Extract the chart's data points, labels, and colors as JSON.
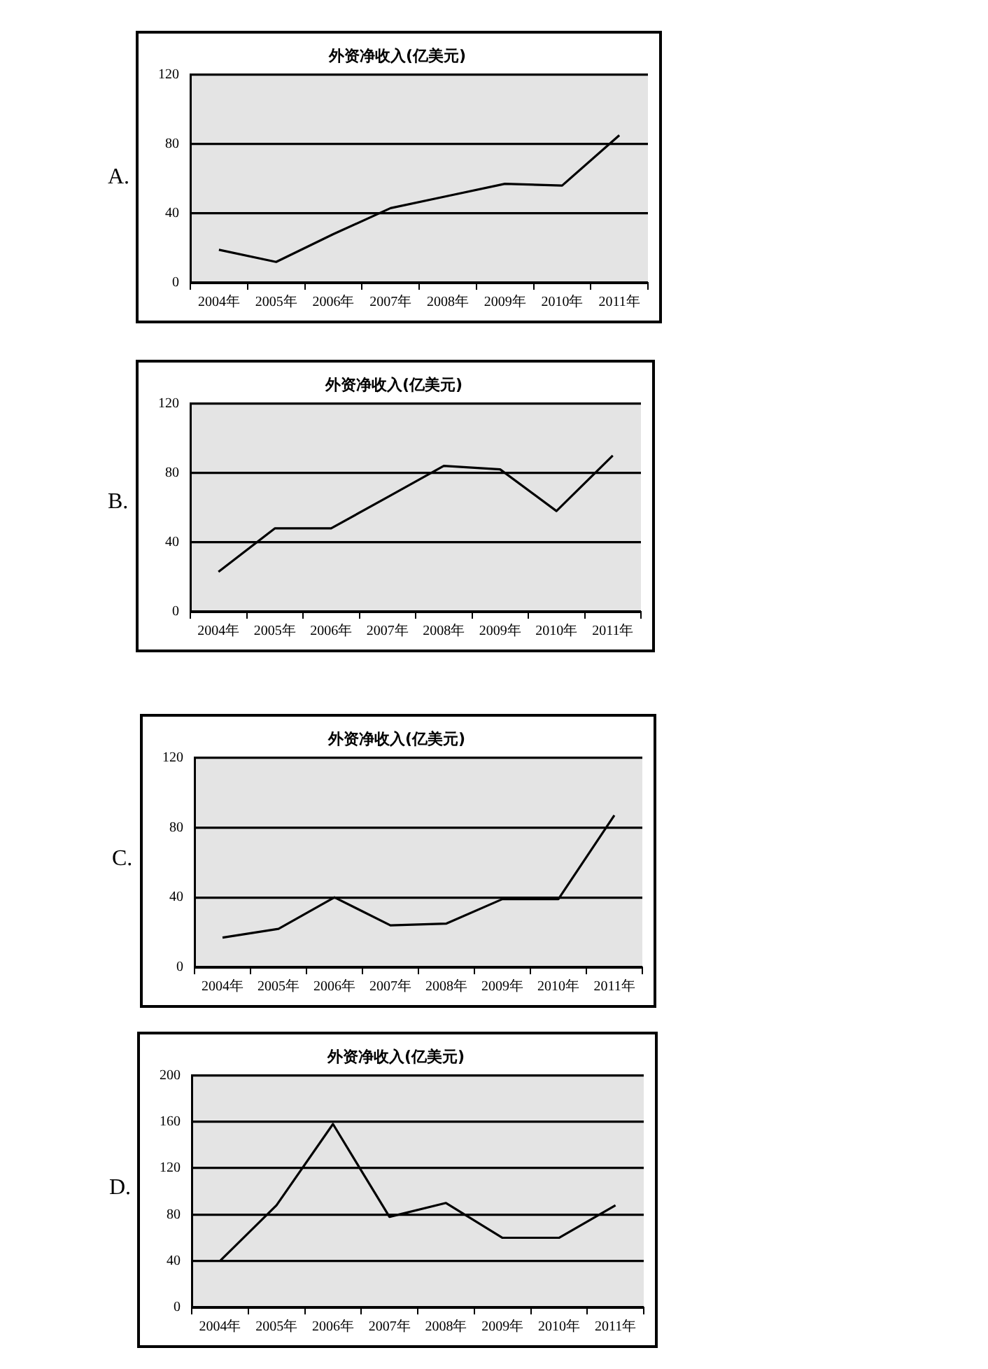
{
  "chart_data": [
    {
      "type": "line",
      "title": "外资净收入(亿美元)",
      "annotations": [
        "A."
      ],
      "categories": [
        "2004年",
        "2005年",
        "2006年",
        "2007年",
        "2008年",
        "2009年",
        "2010年",
        "2011年"
      ],
      "series": [
        {
          "color": "#000000",
          "values": [
            19,
            12,
            28,
            43,
            50,
            57,
            56,
            85
          ]
        }
      ],
      "ylim": [
        0,
        120
      ],
      "yticks": [
        0,
        40,
        80,
        120
      ],
      "grid": "y",
      "legend": false,
      "marker": "none",
      "line_style": "solid"
    },
    {
      "type": "line",
      "title": "外资净收入(亿美元)",
      "annotations": [
        "B."
      ],
      "categories": [
        "2004年",
        "2005年",
        "2006年",
        "2007年",
        "2008年",
        "2009年",
        "2010年",
        "2011年"
      ],
      "series": [
        {
          "color": "#000000",
          "values": [
            23,
            48,
            48,
            66,
            84,
            82,
            58,
            90
          ]
        }
      ],
      "ylim": [
        0,
        120
      ],
      "yticks": [
        0,
        40,
        80,
        120
      ],
      "grid": "y",
      "legend": false,
      "marker": "none",
      "line_style": "solid"
    },
    {
      "type": "line",
      "title": "外资净收入(亿美元)",
      "annotations": [
        "C."
      ],
      "categories": [
        "2004年",
        "2005年",
        "2006年",
        "2007年",
        "2008年",
        "2009年",
        "2010年",
        "2011年"
      ],
      "series": [
        {
          "color": "#000000",
          "values": [
            17,
            22,
            40,
            24,
            25,
            39,
            39,
            87
          ]
        }
      ],
      "ylim": [
        0,
        120
      ],
      "yticks": [
        0,
        40,
        80,
        120
      ],
      "grid": "y",
      "legend": false,
      "marker": "none",
      "line_style": "solid"
    },
    {
      "type": "line",
      "title": "外资净收入(亿美元)",
      "annotations": [
        "D."
      ],
      "categories": [
        "2004年",
        "2005年",
        "2006年",
        "2007年",
        "2008年",
        "2009年",
        "2010年",
        "2011年"
      ],
      "series": [
        {
          "color": "#000000",
          "values": [
            40,
            88,
            158,
            78,
            90,
            60,
            60,
            88
          ]
        }
      ],
      "ylim": [
        0,
        200
      ],
      "yticks": [
        0,
        40,
        80,
        120,
        160,
        200
      ],
      "grid": "y",
      "legend": false,
      "marker": "none",
      "line_style": "solid"
    }
  ]
}
